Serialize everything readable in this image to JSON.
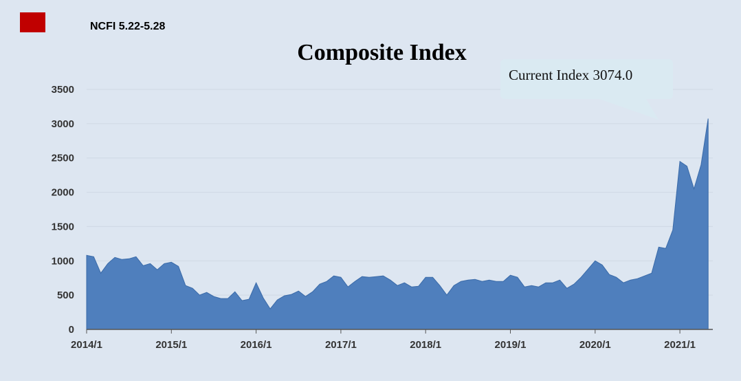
{
  "header": {
    "tag": "NCFI 5.22-5.28",
    "title": "Composite Index",
    "accent_color": "#c00000"
  },
  "callout": {
    "text": "Current Index 3074.0"
  },
  "chart_data": {
    "type": "area",
    "title": "Composite Index",
    "xlabel": "",
    "ylabel": "",
    "ylim": [
      0,
      3500
    ],
    "yticks": [
      0,
      500,
      1000,
      1500,
      2000,
      2500,
      3000,
      3500
    ],
    "xticks": [
      "2014/1",
      "2015/1",
      "2016/1",
      "2017/1",
      "2018/1",
      "2019/1",
      "2020/1",
      "2021/1"
    ],
    "grid": "horizontal",
    "fill_color": "#4f7fbd",
    "line_color": "#3a6aa8",
    "series": [
      {
        "x": [
          "2014/1",
          "2014/2",
          "2014/3",
          "2014/4",
          "2014/5",
          "2014/6",
          "2014/7",
          "2014/8",
          "2014/9",
          "2014/10",
          "2014/11",
          "2014/12",
          "2015/1",
          "2015/2",
          "2015/3",
          "2015/4",
          "2015/5",
          "2015/6",
          "2015/7",
          "2015/8",
          "2015/9",
          "2015/10",
          "2015/11",
          "2015/12",
          "2016/1",
          "2016/2",
          "2016/3",
          "2016/4",
          "2016/5",
          "2016/6",
          "2016/7",
          "2016/8",
          "2016/9",
          "2016/10",
          "2016/11",
          "2016/12",
          "2017/1",
          "2017/2",
          "2017/3",
          "2017/4",
          "2017/5",
          "2017/6",
          "2017/7",
          "2017/8",
          "2017/9",
          "2017/10",
          "2017/11",
          "2017/12",
          "2018/1",
          "2018/2",
          "2018/3",
          "2018/4",
          "2018/5",
          "2018/6",
          "2018/7",
          "2018/8",
          "2018/9",
          "2018/10",
          "2018/11",
          "2018/12",
          "2019/1",
          "2019/2",
          "2019/3",
          "2019/4",
          "2019/5",
          "2019/6",
          "2019/7",
          "2019/8",
          "2019/9",
          "2019/10",
          "2019/11",
          "2019/12",
          "2020/1",
          "2020/2",
          "2020/3",
          "2020/4",
          "2020/5",
          "2020/6",
          "2020/7",
          "2020/8",
          "2020/9",
          "2020/10",
          "2020/11",
          "2020/12",
          "2021/1",
          "2021/2",
          "2021/3",
          "2021/4",
          "2021/5"
        ],
        "values": [
          1080,
          1060,
          820,
          960,
          1050,
          1020,
          1030,
          1060,
          930,
          960,
          870,
          960,
          980,
          920,
          640,
          600,
          500,
          540,
          480,
          450,
          450,
          550,
          420,
          440,
          680,
          460,
          300,
          430,
          490,
          510,
          560,
          480,
          550,
          660,
          700,
          780,
          760,
          620,
          700,
          770,
          760,
          770,
          780,
          720,
          640,
          680,
          620,
          630,
          760,
          760,
          640,
          500,
          640,
          700,
          720,
          730,
          700,
          720,
          700,
          700,
          790,
          760,
          620,
          640,
          620,
          680,
          680,
          720,
          600,
          660,
          760,
          880,
          1000,
          940,
          800,
          760,
          680,
          720,
          740,
          780,
          820,
          1200,
          1180,
          1450,
          2450,
          2380,
          2050,
          2400,
          3074
        ]
      }
    ]
  }
}
